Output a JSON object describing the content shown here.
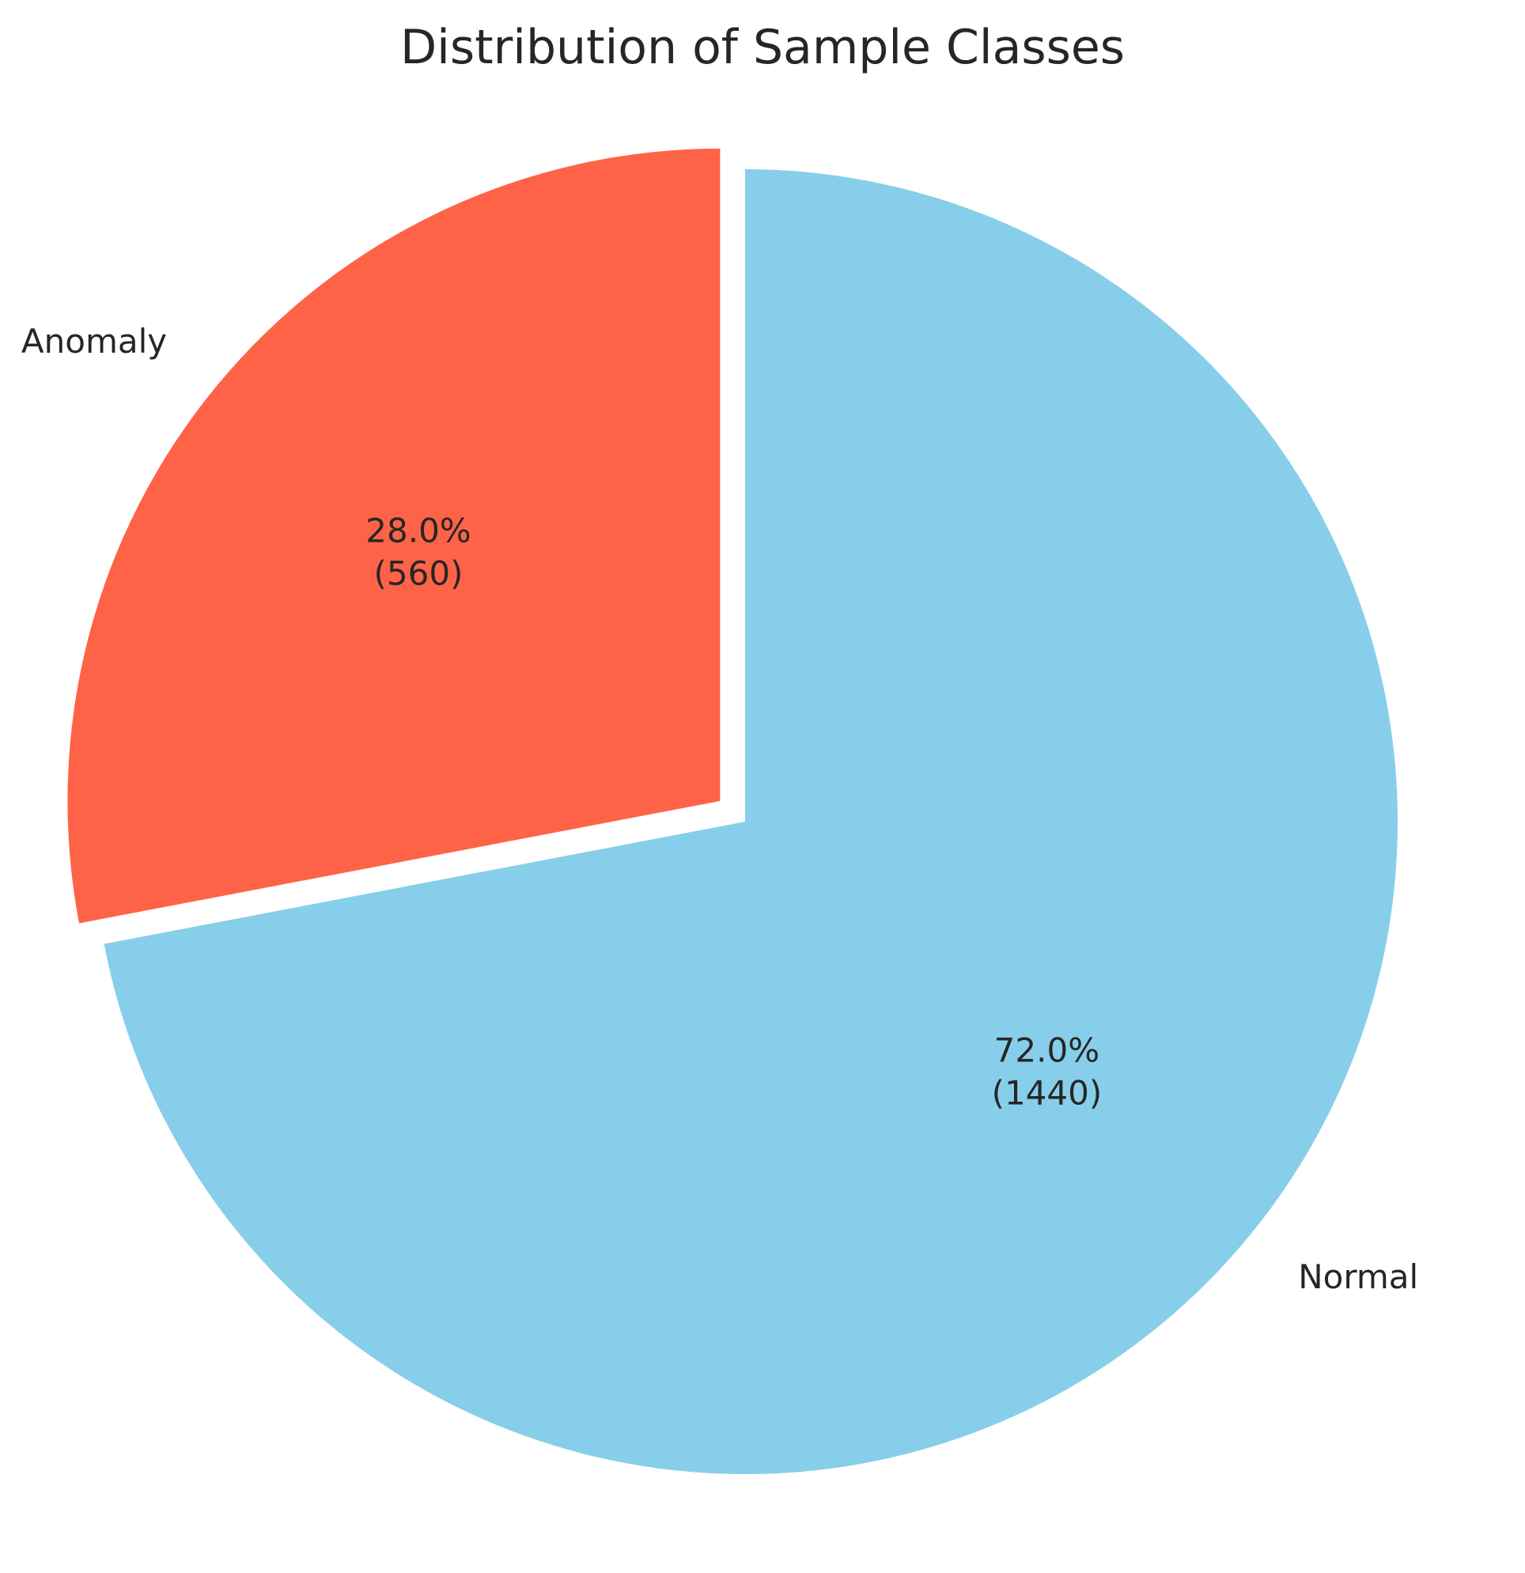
{
  "chart_data": {
    "type": "pie",
    "title": "Distribution of Sample Classes",
    "slices": [
      {
        "label": "Normal",
        "value": 1440,
        "percent_label": "72.0%",
        "count_label": "(1440)",
        "color": "#87CEEB",
        "exploded": false
      },
      {
        "label": "Anomaly",
        "value": 560,
        "percent_label": "28.0%",
        "count_label": "(560)",
        "color": "#FF6347",
        "exploded": true
      }
    ],
    "start_angle_deg": 90,
    "direction": "clockwise",
    "legend": "none"
  }
}
